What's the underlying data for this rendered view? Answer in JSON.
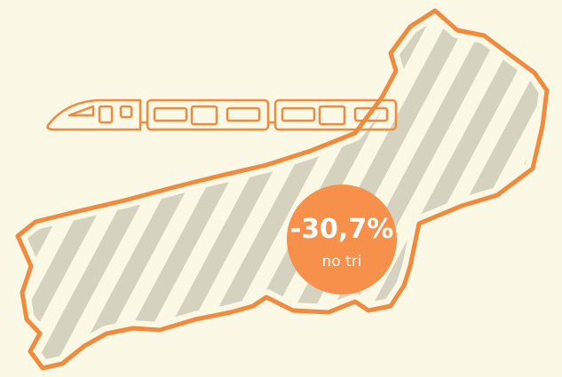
{
  "badge": {
    "value": "-30,7%",
    "caption": "no tri"
  }
}
